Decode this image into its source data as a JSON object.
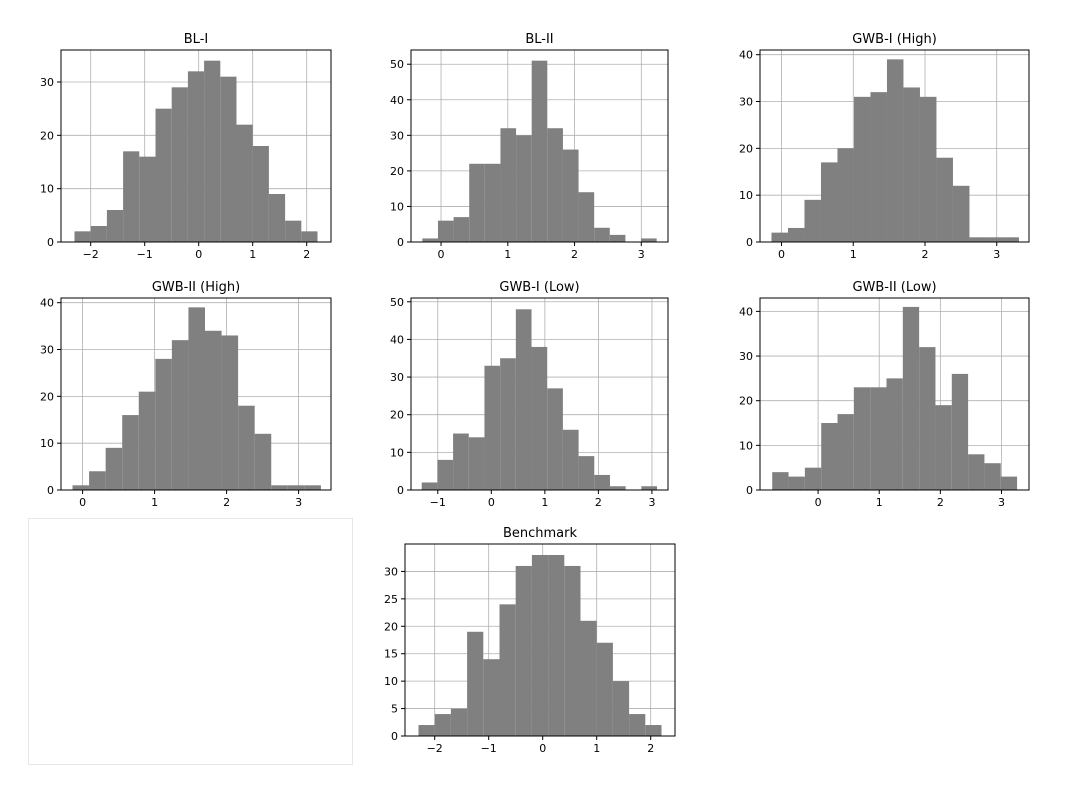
{
  "figure": {
    "background": "#ffffff",
    "bar_color": "#808080",
    "grid_color": "#b0b0b0"
  },
  "chart_data": [
    {
      "type": "bar",
      "title": "BL-I",
      "grid": true,
      "bin_start": -2.3,
      "bin_width": 0.3,
      "values": [
        2,
        3,
        6,
        17,
        16,
        25,
        29,
        32,
        34,
        31,
        22,
        18,
        9,
        4,
        2
      ],
      "xlim": [
        -2.55,
        2.45
      ],
      "ylim": [
        0,
        36
      ],
      "xticks": [
        -2,
        -1,
        0,
        1,
        2
      ],
      "yticks": [
        0,
        10,
        20,
        30
      ]
    },
    {
      "type": "bar",
      "title": "BL-II",
      "grid": true,
      "bin_start": -0.28,
      "bin_width": 0.234,
      "values": [
        1,
        6,
        7,
        22,
        22,
        32,
        30,
        51,
        32,
        26,
        14,
        4,
        2,
        0,
        1
      ],
      "xlim": [
        -0.45,
        3.4
      ],
      "ylim": [
        0,
        54
      ],
      "xticks": [
        0,
        1,
        2,
        3
      ],
      "yticks": [
        0,
        10,
        20,
        30,
        40,
        50
      ]
    },
    {
      "type": "bar",
      "title": "GWB-I (High)",
      "grid": true,
      "bin_start": -0.14,
      "bin_width": 0.23,
      "values": [
        2,
        3,
        9,
        17,
        20,
        31,
        32,
        39,
        33,
        31,
        18,
        12,
        1,
        1,
        1
      ],
      "xlim": [
        -0.3,
        3.45
      ],
      "ylim": [
        0,
        41
      ],
      "xticks": [
        0,
        1,
        2,
        3
      ],
      "yticks": [
        0,
        10,
        20,
        30,
        40
      ]
    },
    {
      "type": "bar",
      "title": "GWB-II (High)",
      "grid": true,
      "bin_start": -0.14,
      "bin_width": 0.23,
      "values": [
        1,
        4,
        9,
        16,
        21,
        28,
        32,
        39,
        34,
        33,
        18,
        12,
        1,
        1,
        1
      ],
      "xlim": [
        -0.3,
        3.45
      ],
      "ylim": [
        0,
        41
      ],
      "xticks": [
        0,
        1,
        2,
        3
      ],
      "yticks": [
        0,
        10,
        20,
        30,
        40
      ]
    },
    {
      "type": "bar",
      "title": "GWB-I (Low)",
      "grid": true,
      "bin_start": -1.3,
      "bin_width": 0.293,
      "values": [
        2,
        8,
        15,
        14,
        33,
        35,
        48,
        38,
        27,
        16,
        9,
        4,
        1,
        0,
        1
      ],
      "xlim": [
        -1.5,
        3.3
      ],
      "ylim": [
        0,
        51
      ],
      "xticks": [
        -1,
        0,
        1,
        2,
        3
      ],
      "yticks": [
        0,
        10,
        20,
        30,
        40,
        50
      ]
    },
    {
      "type": "bar",
      "title": "GWB-II (Low)",
      "grid": true,
      "bin_start": -0.75,
      "bin_width": 0.267,
      "values": [
        4,
        3,
        5,
        15,
        17,
        23,
        23,
        25,
        41,
        32,
        19,
        26,
        8,
        6,
        3
      ],
      "xlim": [
        -0.95,
        3.45
      ],
      "ylim": [
        0,
        43
      ],
      "xticks": [
        0,
        1,
        2,
        3
      ],
      "yticks": [
        0,
        10,
        20,
        30,
        40
      ]
    },
    {
      "type": "bar",
      "title": "Benchmark",
      "grid": true,
      "bin_start": -2.3,
      "bin_width": 0.3,
      "values": [
        2,
        4,
        5,
        19,
        14,
        24,
        31,
        33,
        33,
        31,
        21,
        17,
        10,
        4,
        2
      ],
      "xlim": [
        -2.55,
        2.45
      ],
      "ylim": [
        0,
        35
      ],
      "xticks": [
        -2,
        -1,
        0,
        1,
        2
      ],
      "yticks": [
        0,
        5,
        10,
        15,
        20,
        25,
        30
      ]
    }
  ]
}
